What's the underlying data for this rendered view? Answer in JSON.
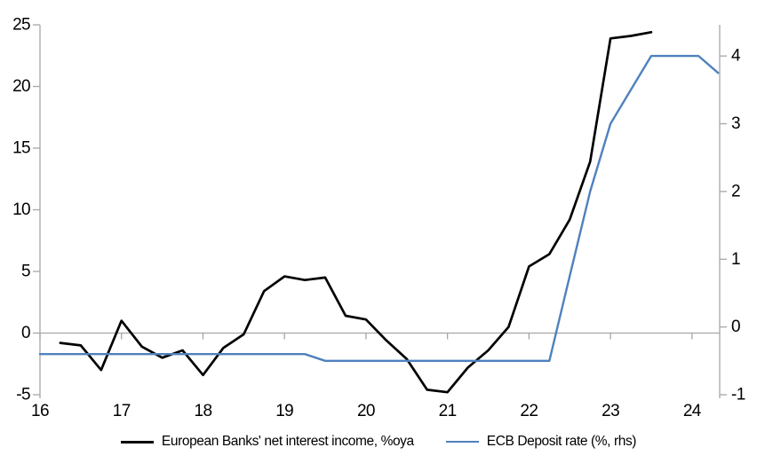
{
  "chart_data": {
    "type": "line",
    "title": "",
    "legend_position": "bottom",
    "axis_color": "#a6a6a6",
    "background_color": "#ffffff",
    "gridlines": {
      "zero_line_only": true
    },
    "x_axis": {
      "range": [
        16,
        24.34
      ],
      "ticks": [
        16,
        17,
        18,
        19,
        20,
        21,
        22,
        23,
        24
      ],
      "tick_labels": [
        "16",
        "17",
        "18",
        "19",
        "20",
        "21",
        "22",
        "23",
        "24"
      ]
    },
    "left_axis": {
      "range": [
        -5,
        25
      ],
      "ticks": [
        -5,
        0,
        5,
        10,
        15,
        20,
        25
      ]
    },
    "right_axis": {
      "range": [
        -1,
        4.46
      ],
      "ticks": [
        -1,
        0,
        1,
        2,
        3,
        4
      ]
    },
    "series": [
      {
        "name": "European Banks' net interest income, %oya",
        "axis": "left",
        "color": "#000000",
        "stroke_width": 2.7,
        "points": [
          [
            16.25,
            -0.8
          ],
          [
            16.5,
            -1.0
          ],
          [
            16.75,
            -3.0
          ],
          [
            17.0,
            1.0
          ],
          [
            17.25,
            -1.1
          ],
          [
            17.5,
            -2.0
          ],
          [
            17.75,
            -1.4
          ],
          [
            18.0,
            -3.4
          ],
          [
            18.25,
            -1.2
          ],
          [
            18.5,
            -0.1
          ],
          [
            18.75,
            3.4
          ],
          [
            19.0,
            4.6
          ],
          [
            19.25,
            4.3
          ],
          [
            19.5,
            4.5
          ],
          [
            19.75,
            1.4
          ],
          [
            20.0,
            1.1
          ],
          [
            20.25,
            -0.6
          ],
          [
            20.5,
            -2.1
          ],
          [
            20.75,
            -4.6
          ],
          [
            21.0,
            -4.8
          ],
          [
            21.25,
            -2.8
          ],
          [
            21.5,
            -1.4
          ],
          [
            21.75,
            0.5
          ],
          [
            22.0,
            5.4
          ],
          [
            22.25,
            6.4
          ],
          [
            22.5,
            9.2
          ],
          [
            22.75,
            13.9
          ],
          [
            23.0,
            23.9
          ],
          [
            23.25,
            24.1
          ],
          [
            23.5,
            24.4
          ]
        ]
      },
      {
        "name": "ECB Deposit rate (%, rhs)",
        "axis": "right",
        "color": "#4F81BD",
        "stroke_width": 2.4,
        "points": [
          [
            16.0,
            -0.4
          ],
          [
            19.25,
            -0.4
          ],
          [
            19.5,
            -0.5
          ],
          [
            22.25,
            -0.5
          ],
          [
            22.5,
            0.75
          ],
          [
            22.75,
            2.0
          ],
          [
            23.0,
            3.0
          ],
          [
            23.25,
            3.5
          ],
          [
            23.5,
            4.0
          ],
          [
            24.08,
            4.0
          ],
          [
            24.32,
            3.75
          ]
        ]
      }
    ]
  }
}
